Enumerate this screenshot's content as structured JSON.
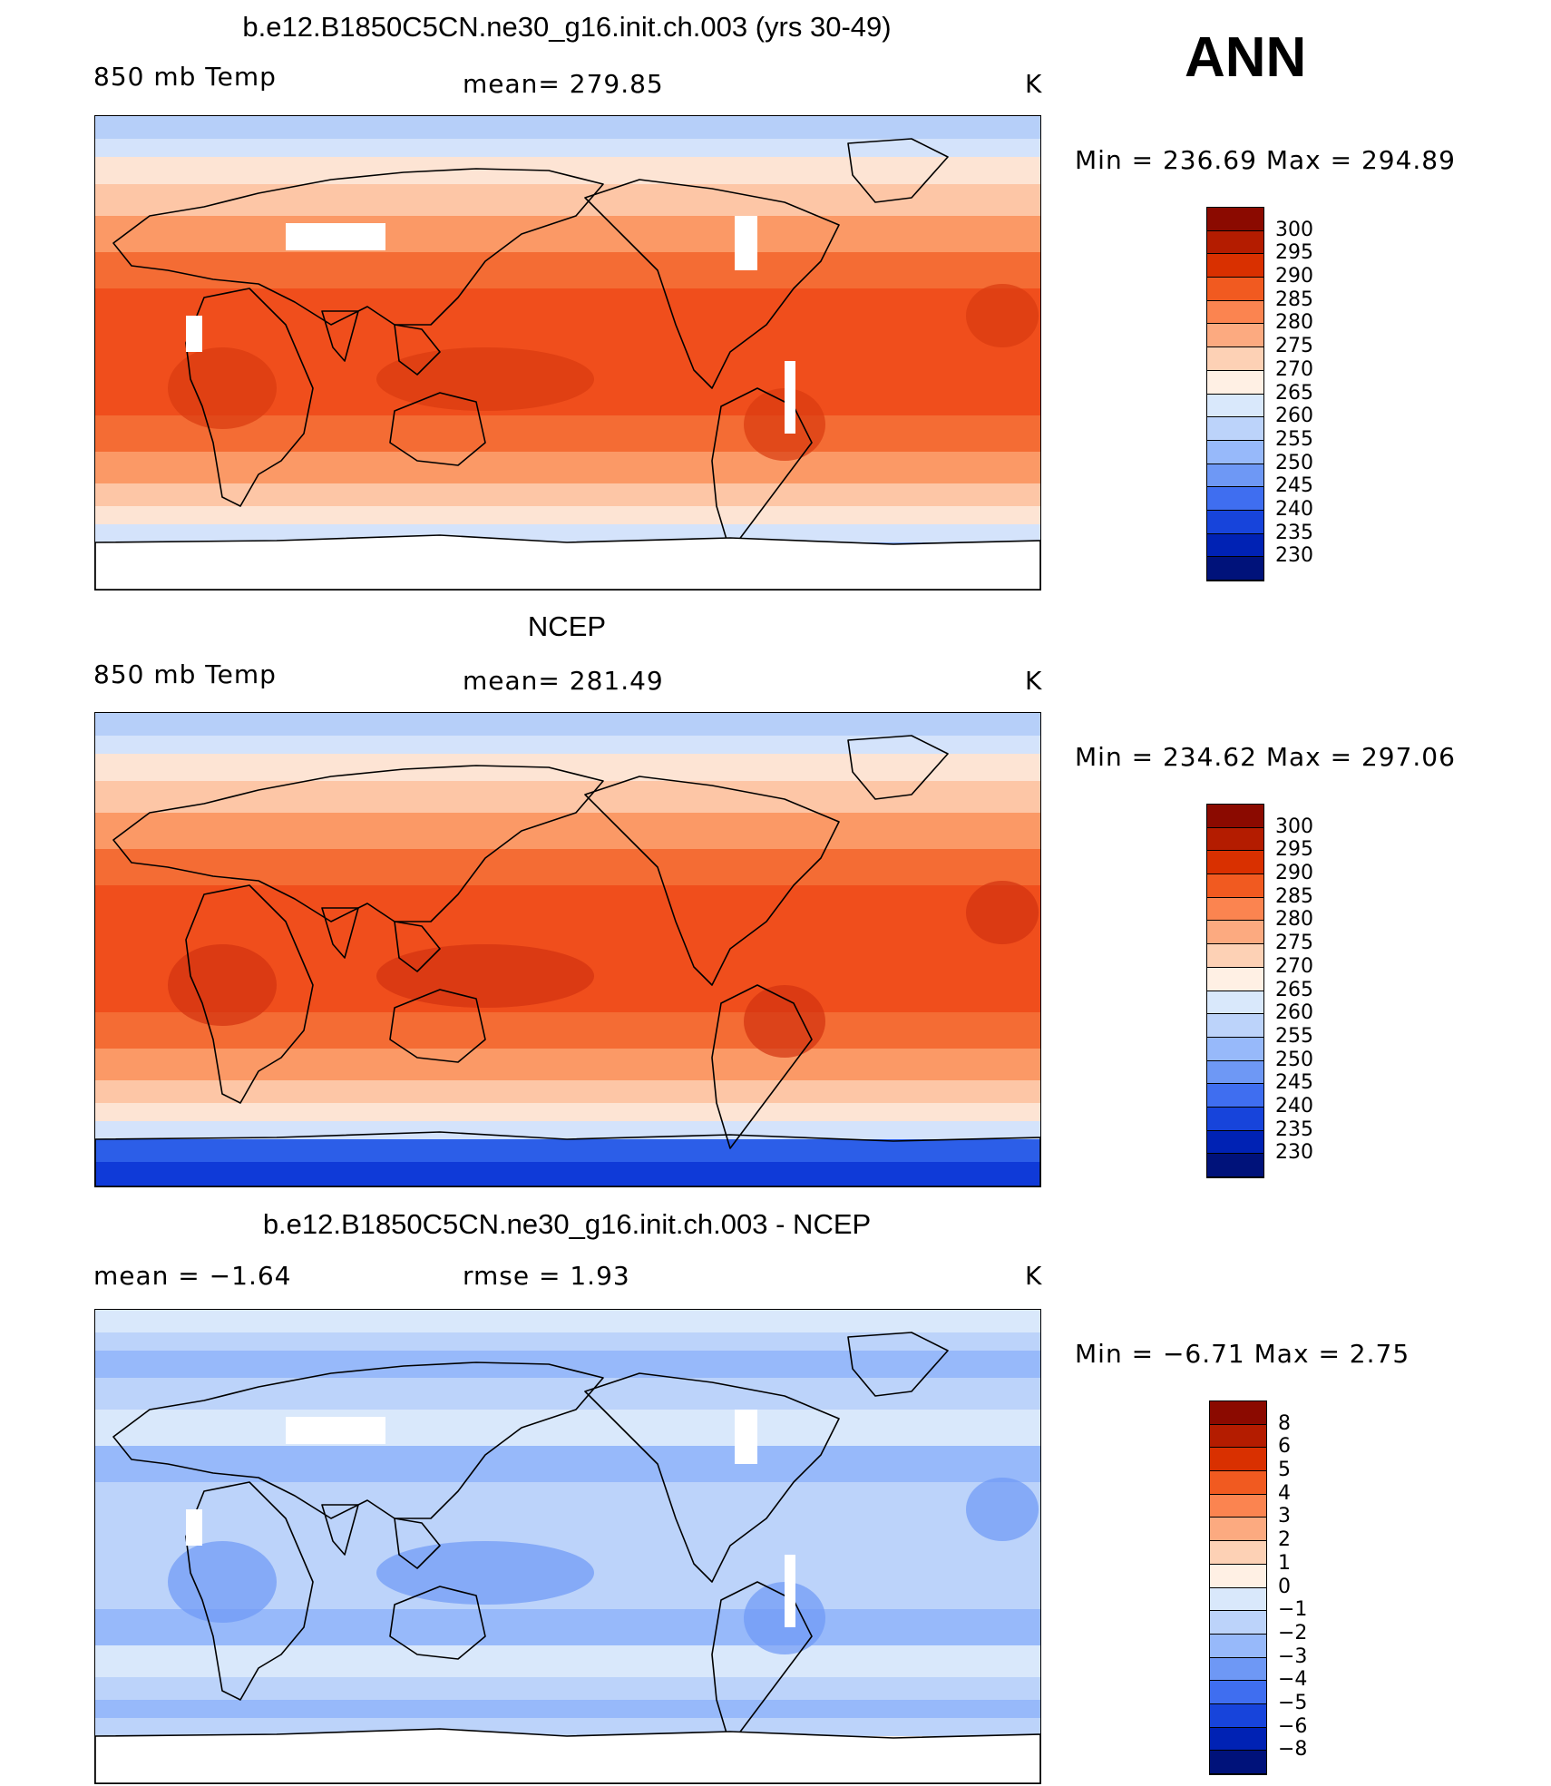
{
  "season": "ANN",
  "panels": [
    {
      "title": "b.e12.B1850C5CN.ne30_g16.init.ch.003 (yrs 30-49)",
      "left_label": "850 mb Temp",
      "center_label": "mean= 279.85",
      "units": "K",
      "minmax": "Min = 236.69 Max = 294.89",
      "levels": [
        "300",
        "295",
        "290",
        "285",
        "280",
        "275",
        "270",
        "265",
        "260",
        "255",
        "250",
        "245",
        "240",
        "235",
        "230"
      ],
      "colors": [
        "#8b0a00",
        "#b41c00",
        "#d93000",
        "#f15a20",
        "#fb8450",
        "#fcaa80",
        "#fdd1b5",
        "#fff0e4",
        "#d9e8fb",
        "#bcd3fa",
        "#97b9fa",
        "#6e98f5",
        "#3f6ef0",
        "#1744db",
        "#0022b4",
        "#00127a"
      ],
      "map_colors": {
        "tropics": "#f04e1c",
        "subtrop": "#f46c34",
        "mid": "#fb9966",
        "mid2": "#fdc6a6",
        "hi": "#fde4d4",
        "polar": "#d4e3fb",
        "polar2": "#b6cff9",
        "ice": "#7ea4f3",
        "ice2": "#4a79ee",
        "hot": "#d93a10"
      }
    },
    {
      "title": "NCEP",
      "left_label": "850 mb Temp",
      "center_label": "mean= 281.49",
      "units": "K",
      "minmax": "Min = 234.62 Max = 297.06",
      "levels": [
        "300",
        "295",
        "290",
        "285",
        "280",
        "275",
        "270",
        "265",
        "260",
        "255",
        "250",
        "245",
        "240",
        "235",
        "230"
      ],
      "colors": [
        "#8b0a00",
        "#b41c00",
        "#d93000",
        "#f15a20",
        "#fb8450",
        "#fcaa80",
        "#fdd1b5",
        "#fff0e4",
        "#d9e8fb",
        "#bcd3fa",
        "#97b9fa",
        "#6e98f5",
        "#3f6ef0",
        "#1744db",
        "#0022b4",
        "#00127a"
      ],
      "map_colors": {
        "tropics": "#f04e1c",
        "subtrop": "#f46c34",
        "mid": "#fb9966",
        "mid2": "#fdc6a6",
        "hi": "#fde4d4",
        "polar": "#d4e3fb",
        "polar2": "#b6cff9",
        "ice": "#2c5ee8",
        "ice2": "#0f3ad8",
        "hot": "#d23210"
      }
    },
    {
      "title": "b.e12.B1850C5CN.ne30_g16.init.ch.003 - NCEP",
      "left_label": "mean = −1.64",
      "center_label": "rmse = 1.93",
      "units": "K",
      "minmax": "Min = −6.71 Max = 2.75",
      "levels": [
        "8",
        "6",
        "5",
        "4",
        "3",
        "2",
        "1",
        "0",
        "−1",
        "−2",
        "−3",
        "−4",
        "−5",
        "−6",
        "−8"
      ],
      "colors": [
        "#8b0a00",
        "#b41c00",
        "#d93000",
        "#f15a20",
        "#fb8450",
        "#fcaa80",
        "#fdd1b5",
        "#fff0e4",
        "#d9e8fb",
        "#bcd3fa",
        "#97b9fa",
        "#6e98f5",
        "#3f6ef0",
        "#1744db",
        "#0022b4",
        "#00127a"
      ],
      "map_colors": {
        "tropics": "#bcd3fa",
        "subtrop": "#97b9fa",
        "mid": "#d9e8fb",
        "mid2": "#bcd3fa",
        "hi": "#97b9fa",
        "polar": "#bcd3fa",
        "polar2": "#d9e8fb",
        "ice": "#fff0e4",
        "ice2": "#fdd1b5",
        "hot": "#6e98f5"
      }
    }
  ]
}
